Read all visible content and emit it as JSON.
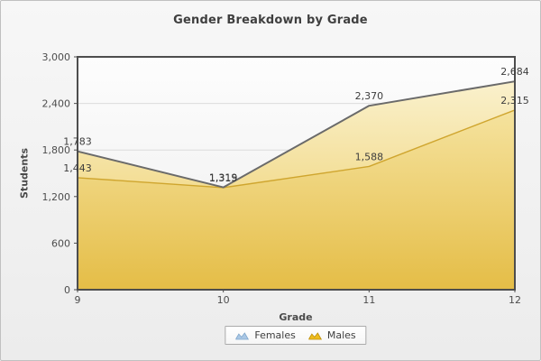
{
  "widget": {
    "title": "Gender Breakdown by Grade"
  },
  "chart_data": {
    "type": "area",
    "title": "Gender Breakdown by Grade",
    "xlabel": "Grade",
    "ylabel": "Students",
    "categories": [
      "9",
      "10",
      "11",
      "12"
    ],
    "series": [
      {
        "name": "Females",
        "values": [
          1783,
          1319,
          2370,
          2684
        ],
        "labels": [
          "1,783",
          "1,319",
          "2,370",
          "2,684"
        ],
        "line_color": "#6a6a6a",
        "fill_top": "#faf1cd",
        "fill_bottom": "#ecca5c",
        "legend_color": "#a9c7e4",
        "legend_stroke": "#7fa6cc"
      },
      {
        "name": "Males",
        "values": [
          1443,
          1315,
          1588,
          2315
        ],
        "labels": [
          "1,443",
          "1,315",
          "1,588",
          "2,315"
        ],
        "line_color": "#cfa52e",
        "fill_top": "#f5e29c",
        "fill_bottom": "#e4bc45",
        "legend_color": "#eebc1e",
        "legend_stroke": "#bd8f0a"
      }
    ],
    "ylim": [
      0,
      3000
    ],
    "yticks": {
      "values": [
        0,
        600,
        1200,
        1800,
        2400,
        3000
      ],
      "labels": [
        "0",
        "600",
        "1,200",
        "1,800",
        "2,400",
        "3,000"
      ]
    },
    "grid": "horizontal",
    "legend_position": "bottom",
    "colors": {
      "plot_border": "#4d4d4d",
      "grid_line": "#dcdcdc",
      "tick_text": "#4d4d4d",
      "data_label": "#3d3d3d",
      "plot_bg_top": "#fdfdfd",
      "plot_bg_bottom": "#eeeeee"
    }
  }
}
